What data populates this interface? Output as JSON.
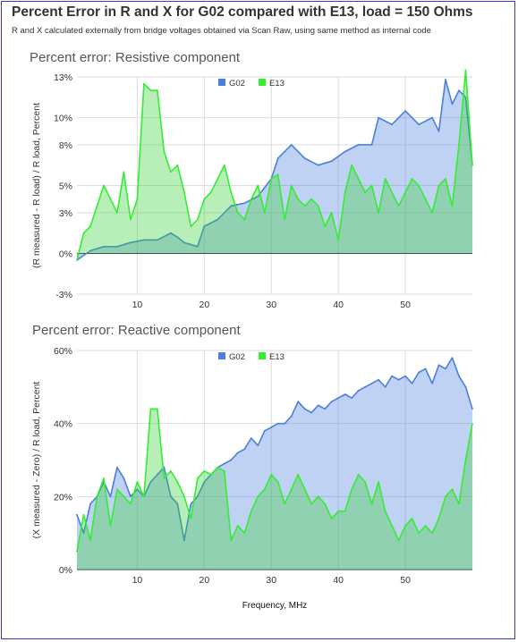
{
  "header": {
    "title": "Percent Error in R and X for G02 compared with E13, load = 150 Ohms",
    "subtitle": "R and X calculated externally from bridge voltages obtained via Scan Raw, using same method as internal code"
  },
  "colors": {
    "g02": "#4a7fdc",
    "e13": "#33ee33"
  },
  "chart_data": [
    {
      "type": "area",
      "title": "Percent error: Resistive component",
      "xlabel": "",
      "ylabel": "(R measured - R load) / R load, Percent",
      "xlim": [
        1,
        60
      ],
      "ylim": [
        -3,
        13
      ],
      "y_ticks": [
        -3,
        0,
        3,
        5,
        8,
        10,
        13
      ],
      "y_tick_labels": [
        "-3%",
        "0%",
        "3%",
        "5%",
        "8%",
        "10%",
        "13%"
      ],
      "x_ticks": [
        10,
        20,
        30,
        40,
        50
      ],
      "x_tick_labels": [
        "10",
        "20",
        "30",
        "40",
        "50"
      ],
      "legend": "top-center",
      "series": [
        {
          "name": "G02",
          "x": [
            1,
            3,
            5,
            7,
            9,
            11,
            13,
            15,
            16,
            17,
            19,
            20,
            22,
            24,
            26,
            28,
            30,
            31,
            32,
            33,
            35,
            37,
            39,
            41,
            43,
            45,
            46,
            48,
            50,
            52,
            54,
            55,
            56,
            57,
            58,
            59,
            60
          ],
          "values": [
            -0.5,
            0.2,
            0.5,
            0.5,
            0.8,
            1.0,
            1.0,
            1.5,
            1.2,
            0.8,
            0.5,
            2.0,
            2.5,
            3.5,
            3.7,
            4.2,
            5.5,
            7.0,
            7.5,
            8.0,
            7.0,
            6.5,
            6.8,
            7.5,
            8.0,
            8.0,
            10.0,
            9.5,
            10.5,
            9.5,
            10.0,
            9.0,
            12.8,
            11.0,
            12.0,
            11.5,
            6.5
          ]
        },
        {
          "name": "E13",
          "x": [
            1,
            2,
            3,
            4,
            5,
            6,
            7,
            8,
            9,
            10,
            11,
            12,
            13,
            14,
            15,
            16,
            17,
            18,
            19,
            20,
            21,
            22,
            23,
            24,
            25,
            26,
            27,
            28,
            29,
            30,
            31,
            32,
            33,
            34,
            35,
            36,
            37,
            38,
            39,
            40,
            41,
            42,
            43,
            44,
            45,
            46,
            47,
            48,
            49,
            50,
            51,
            52,
            53,
            54,
            55,
            56,
            57,
            58,
            59,
            60
          ],
          "values": [
            -0.5,
            1.5,
            2.0,
            3.5,
            5.0,
            4.0,
            3.0,
            6.0,
            2.5,
            4.0,
            12.5,
            12.0,
            12.0,
            7.5,
            6.0,
            6.5,
            4.5,
            2.0,
            2.5,
            4.0,
            4.5,
            5.5,
            6.5,
            4.5,
            3.0,
            2.5,
            4.0,
            5.0,
            3.0,
            5.5,
            5.8,
            2.5,
            5.0,
            4.0,
            3.5,
            4.0,
            3.5,
            2.0,
            3.0,
            1.0,
            4.5,
            6.5,
            5.5,
            4.5,
            5.0,
            3.0,
            5.5,
            4.5,
            3.5,
            4.5,
            5.5,
            5.0,
            4.0,
            3.0,
            5.0,
            5.5,
            3.5,
            8.0,
            13.5,
            6.5
          ]
        }
      ]
    },
    {
      "type": "area",
      "title": "Percent error: Reactive component",
      "xlabel": "Frequency, MHz",
      "ylabel": "(X measured - Zero) / R load, Percent",
      "xlim": [
        1,
        60
      ],
      "ylim": [
        0,
        60
      ],
      "y_ticks": [
        0,
        20,
        40,
        60
      ],
      "y_tick_labels": [
        "0%",
        "20%",
        "40%",
        "60%"
      ],
      "x_ticks": [
        10,
        20,
        30,
        40,
        50
      ],
      "x_tick_labels": [
        "10",
        "20",
        "30",
        "40",
        "50"
      ],
      "legend": "top-center",
      "series": [
        {
          "name": "G02",
          "x": [
            1,
            2,
            3,
            4,
            5,
            6,
            7,
            8,
            9,
            10,
            11,
            12,
            13,
            14,
            15,
            16,
            17,
            18,
            19,
            20,
            21,
            22,
            23,
            24,
            25,
            26,
            27,
            28,
            29,
            30,
            31,
            32,
            33,
            34,
            35,
            36,
            37,
            38,
            39,
            40,
            41,
            42,
            43,
            44,
            45,
            46,
            47,
            48,
            49,
            50,
            51,
            52,
            53,
            54,
            55,
            56,
            57,
            58,
            59,
            60
          ],
          "values": [
            15.0,
            10.0,
            18.0,
            20.0,
            24.0,
            20.0,
            28.0,
            25.0,
            20.0,
            22.0,
            20.0,
            24.0,
            26.0,
            28.0,
            20.0,
            18.0,
            8.0,
            18.0,
            20.0,
            24.0,
            26.0,
            28.0,
            29.0,
            30.0,
            32.0,
            33.0,
            36.0,
            34.0,
            38.0,
            39.0,
            40.0,
            40.0,
            42.0,
            46.0,
            44.0,
            43.0,
            45.0,
            44.0,
            46.0,
            47.0,
            48.0,
            47.0,
            49.0,
            50.0,
            51.0,
            52.0,
            50.0,
            53.0,
            52.0,
            53.0,
            51.0,
            54.0,
            55.0,
            51.0,
            56.0,
            55.0,
            58.0,
            53.0,
            50.0,
            44.0
          ]
        },
        {
          "name": "E13",
          "x": [
            1,
            2,
            3,
            4,
            5,
            6,
            7,
            8,
            9,
            10,
            11,
            12,
            13,
            14,
            15,
            16,
            17,
            18,
            19,
            20,
            21,
            22,
            23,
            24,
            25,
            26,
            27,
            28,
            29,
            30,
            31,
            32,
            33,
            34,
            35,
            36,
            37,
            38,
            39,
            40,
            41,
            42,
            43,
            44,
            45,
            46,
            47,
            48,
            49,
            50,
            51,
            52,
            53,
            54,
            55,
            56,
            57,
            58,
            59,
            60
          ],
          "values": [
            5.0,
            15.0,
            8.0,
            20.0,
            25.0,
            12.0,
            22.0,
            20.0,
            18.0,
            24.0,
            20.0,
            44.0,
            44.0,
            25.0,
            27.0,
            24.0,
            20.0,
            14.0,
            25.0,
            27.0,
            26.0,
            28.0,
            27.0,
            8.0,
            12.0,
            10.0,
            16.0,
            20.0,
            22.0,
            26.0,
            24.0,
            18.0,
            22.0,
            26.0,
            22.0,
            18.0,
            20.0,
            18.0,
            14.0,
            16.0,
            16.0,
            22.0,
            26.0,
            24.0,
            18.0,
            24.0,
            16.0,
            12.0,
            8.0,
            12.0,
            14.0,
            10.0,
            12.0,
            10.0,
            14.0,
            20.0,
            22.0,
            18.0,
            30.0,
            40.0
          ]
        }
      ]
    }
  ]
}
